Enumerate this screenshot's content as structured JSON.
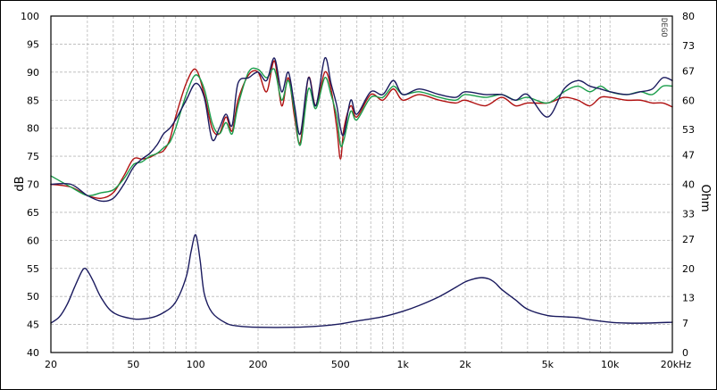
{
  "chart_data": {
    "type": "line",
    "title": "",
    "xlabel": "",
    "ylabel": "dB",
    "y2label": "Ohm",
    "x_scale": "log",
    "xlim": [
      20,
      20000
    ],
    "ylim": [
      40,
      100
    ],
    "y2lim": [
      0,
      80
    ],
    "grid": true,
    "brand_mark": "DEGO",
    "x_ticks": [
      20,
      50,
      100,
      200,
      500,
      1000,
      2000,
      5000,
      10000,
      20000
    ],
    "x_tick_labels": [
      "20",
      "50",
      "100",
      "200",
      "500",
      "1k",
      "2k",
      "5k",
      "10k",
      "20kHz"
    ],
    "y_ticks": [
      40,
      45,
      50,
      55,
      60,
      65,
      70,
      75,
      80,
      85,
      90,
      95,
      100
    ],
    "y_tick_labels": [
      "40",
      "45",
      "50",
      "55",
      "60",
      "65",
      "70",
      "75",
      "80",
      "85",
      "90",
      "95",
      "100"
    ],
    "y2_ticks": [
      0,
      7,
      13,
      20,
      27,
      33,
      40,
      47,
      53,
      60,
      67,
      73,
      80
    ],
    "y2_tick_labels": [
      "0",
      "7",
      "13",
      "20",
      "27",
      "33",
      "40",
      "47",
      "53",
      "60",
      "67",
      "73",
      "80"
    ],
    "series": [
      {
        "color": "#b01010",
        "axis": "left",
        "x": [
          20,
          25,
          30,
          35,
          40,
          45,
          50,
          55,
          60,
          65,
          70,
          75,
          80,
          90,
          100,
          110,
          120,
          130,
          140,
          150,
          160,
          180,
          200,
          220,
          240,
          260,
          280,
          300,
          320,
          350,
          380,
          420,
          450,
          480,
          500,
          520,
          560,
          600,
          700,
          800,
          900,
          1000,
          1200,
          1500,
          1800,
          2000,
          2500,
          3000,
          3500,
          4000,
          5000,
          6000,
          7000,
          8000,
          9000,
          10000,
          12000,
          14000,
          16000,
          18000,
          20000
        ],
        "y": [
          70.0,
          69.5,
          68.0,
          67.5,
          68.5,
          71.5,
          74.5,
          74.5,
          74.8,
          75.5,
          76.0,
          78.0,
          82.0,
          88.0,
          90.5,
          86.0,
          80.0,
          79.0,
          82.0,
          79.5,
          85.0,
          89.5,
          90.0,
          86.5,
          92.0,
          84.0,
          89.0,
          82.0,
          77.5,
          89.0,
          84.0,
          90.0,
          87.0,
          80.0,
          74.5,
          80.0,
          84.0,
          82.0,
          86.0,
          85.0,
          87.0,
          85.0,
          86.0,
          85.0,
          84.5,
          85.0,
          84.0,
          85.5,
          84.0,
          84.5,
          84.5,
          85.5,
          85.0,
          84.0,
          85.5,
          85.5,
          85.0,
          85.0,
          84.5,
          84.5,
          83.8
        ]
      },
      {
        "color": "#1a9d4a",
        "axis": "left",
        "x": [
          20,
          25,
          30,
          35,
          40,
          45,
          50,
          55,
          60,
          65,
          70,
          75,
          80,
          90,
          100,
          110,
          120,
          130,
          140,
          150,
          160,
          180,
          200,
          220,
          240,
          260,
          280,
          300,
          320,
          350,
          380,
          420,
          450,
          480,
          500,
          520,
          560,
          600,
          700,
          800,
          900,
          1000,
          1200,
          1500,
          1800,
          2000,
          2500,
          3000,
          3500,
          4000,
          5000,
          6000,
          7000,
          8000,
          9000,
          10000,
          12000,
          14000,
          16000,
          18000,
          20000
        ],
        "y": [
          71.5,
          69.5,
          68.0,
          68.5,
          69.0,
          71.0,
          73.5,
          74.0,
          75.0,
          75.5,
          76.5,
          77.5,
          80.0,
          86.0,
          89.5,
          87.0,
          81.0,
          79.0,
          81.0,
          79.0,
          84.0,
          90.0,
          90.5,
          89.0,
          90.5,
          85.0,
          88.5,
          83.0,
          77.0,
          87.0,
          83.5,
          89.0,
          86.0,
          82.0,
          77.0,
          78.0,
          83.0,
          81.5,
          85.5,
          85.5,
          87.5,
          86.0,
          86.5,
          85.5,
          85.0,
          86.0,
          85.5,
          86.0,
          85.0,
          85.5,
          84.5,
          86.5,
          87.5,
          86.5,
          87.5,
          86.5,
          86.0,
          86.5,
          86.0,
          87.5,
          87.5
        ]
      },
      {
        "color": "#1a1a5e",
        "axis": "left",
        "x": [
          20,
          25,
          30,
          35,
          40,
          45,
          50,
          55,
          60,
          65,
          70,
          75,
          80,
          90,
          100,
          110,
          120,
          130,
          140,
          150,
          160,
          180,
          200,
          220,
          240,
          260,
          280,
          300,
          320,
          350,
          380,
          420,
          450,
          480,
          500,
          520,
          560,
          600,
          700,
          800,
          900,
          1000,
          1200,
          1500,
          1800,
          2000,
          2500,
          3000,
          3500,
          4000,
          5000,
          6000,
          7000,
          8000,
          9000,
          10000,
          12000,
          14000,
          16000,
          18000,
          20000
        ],
        "y": [
          70.0,
          70.0,
          68.0,
          67.0,
          67.5,
          70.0,
          73.0,
          74.5,
          75.5,
          77.0,
          79.0,
          80.0,
          81.5,
          85.0,
          88.0,
          85.5,
          78.0,
          80.0,
          82.5,
          80.5,
          88.0,
          89.0,
          90.0,
          88.5,
          92.5,
          86.5,
          90.0,
          84.0,
          79.0,
          89.0,
          84.0,
          92.5,
          88.0,
          84.0,
          80.0,
          79.0,
          85.0,
          82.5,
          86.5,
          86.0,
          88.5,
          86.0,
          87.0,
          86.0,
          85.5,
          86.5,
          86.0,
          86.0,
          85.0,
          86.0,
          82.0,
          87.0,
          88.5,
          87.5,
          87.0,
          86.5,
          86.0,
          86.5,
          87.0,
          89.0,
          88.5
        ]
      },
      {
        "color": "#1a1a5e",
        "axis": "right",
        "x": [
          20,
          22,
          24,
          26,
          28,
          29,
          30,
          32,
          35,
          40,
          50,
          60,
          70,
          80,
          90,
          95,
          100,
          105,
          110,
          120,
          140,
          160,
          200,
          300,
          400,
          500,
          600,
          800,
          1000,
          1200,
          1500,
          1800,
          2000,
          2200,
          2400,
          2600,
          2800,
          3000,
          3500,
          4000,
          5000,
          6000,
          7000,
          8000,
          10000,
          12000,
          15000,
          20000
        ],
        "y": [
          7.0,
          8.5,
          11.5,
          15.5,
          19.0,
          20.0,
          19.5,
          17.0,
          13.0,
          9.5,
          8.0,
          8.2,
          9.5,
          12.0,
          18.0,
          24.0,
          28.0,
          22.0,
          14.0,
          9.5,
          7.0,
          6.3,
          6.0,
          6.0,
          6.3,
          6.8,
          7.5,
          8.5,
          9.8,
          11.2,
          13.3,
          15.5,
          16.8,
          17.5,
          17.8,
          17.5,
          16.5,
          15.0,
          12.5,
          10.3,
          8.8,
          8.5,
          8.3,
          7.8,
          7.2,
          7.0,
          7.0,
          7.2
        ]
      }
    ]
  }
}
